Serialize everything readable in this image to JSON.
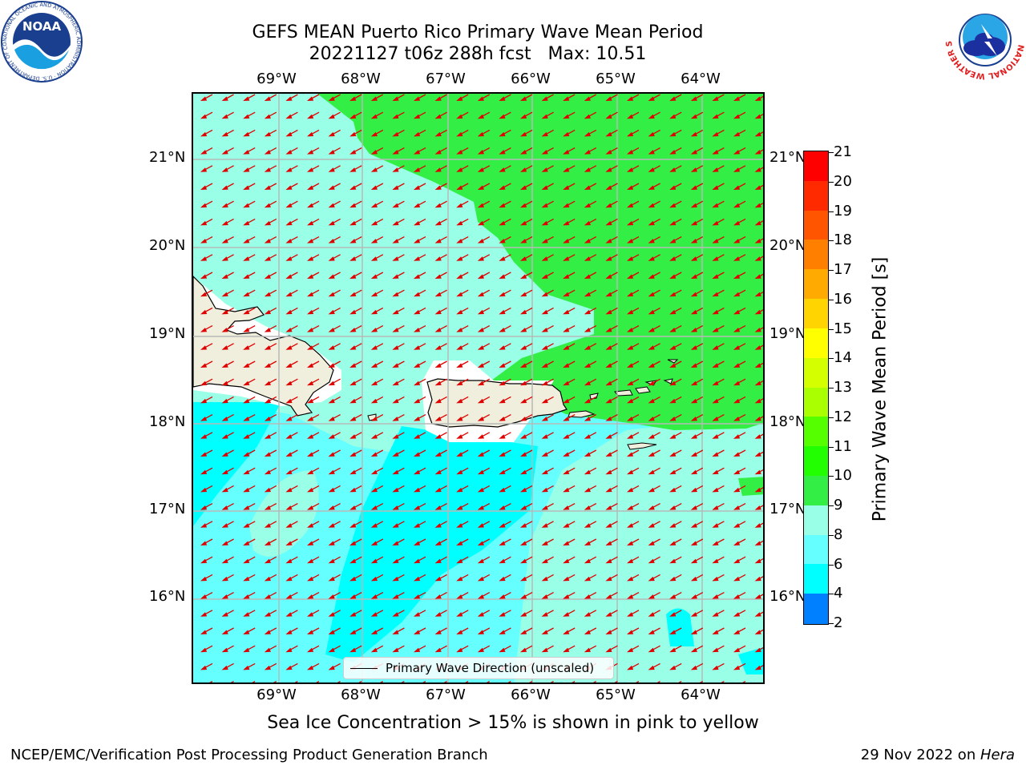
{
  "header": {
    "title_line1": "GEFS MEAN Puerto Rico Primary Wave Mean Period",
    "title_line2": "20221127 t06z 288h fcst   Max: 10.51"
  },
  "logos": {
    "noaa_text": "NOAA",
    "noaa_ring": "NATIONAL OCEANIC AND ATMOSPHERIC ADMINISTRATION · U.S. DEPARTMENT OF COMMERCE",
    "nws_ring": "NATIONAL WEATHER SERVICE"
  },
  "map": {
    "lon_labels": [
      "69°W",
      "68°W",
      "67°W",
      "66°W",
      "65°W",
      "64°W"
    ],
    "lat_labels": [
      "21°N",
      "20°N",
      "19°N",
      "18°N",
      "17°N",
      "16°N"
    ],
    "arrow_direction": "southwest",
    "arrow_color": "#e00000",
    "colors": {
      "land": "#f0eedc",
      "period_6_8": "#00ffff",
      "period_8_9": "#66ffff",
      "period_9_10": "#99ffe6",
      "period_10_11": "#33ee44"
    }
  },
  "legend": {
    "label": "Primary Wave Direction (unscaled)"
  },
  "colorbar": {
    "label": "Primary Wave Mean Period [s]",
    "ticks": [
      "21",
      "20",
      "19",
      "18",
      "17",
      "16",
      "15",
      "14",
      "13",
      "12",
      "11",
      "10",
      "9",
      "8",
      "6",
      "4",
      "2"
    ],
    "colors": [
      "#ff0000",
      "#ff2a00",
      "#ff5500",
      "#ff8000",
      "#ffaa00",
      "#ffd400",
      "#ffff00",
      "#d4ff00",
      "#aaff00",
      "#55ff00",
      "#22ff00",
      "#33ee44",
      "#99ffe6",
      "#66ffff",
      "#00ffff",
      "#0080ff",
      "#0000ff"
    ]
  },
  "footer": {
    "note": "Sea Ice Concentration > 15% is shown in pink to yellow",
    "credit": "NCEP/EMC/Verification Post Processing Product Generation Branch",
    "date_prefix": "29 Nov 2022 on ",
    "host": "Hera"
  }
}
